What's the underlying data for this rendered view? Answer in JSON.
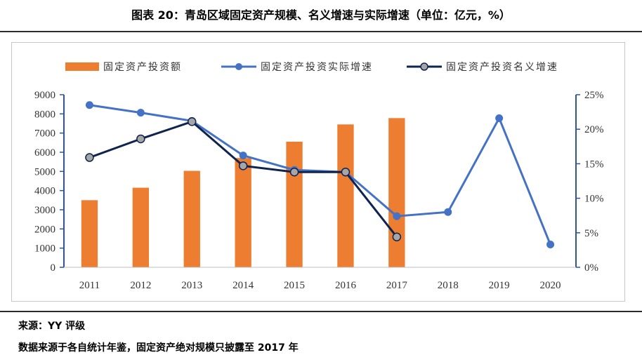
{
  "header": {
    "title": "图表 20：青岛区域固定资产规模、名义增速与实际增速（单位：亿元，%）"
  },
  "footer": {
    "source": "来源：YY 评级",
    "note": "数据来源于各自统计年鉴，固定资产绝对规模只披露至 2017 年"
  },
  "colors": {
    "bar": "#ED7D31",
    "real_line": "#4472C4",
    "nominal_line": "#0F2351",
    "nominal_marker": "#A6A6A6",
    "axis": "#2F5597"
  },
  "chart_data": {
    "type": "bar",
    "categories": [
      "2011",
      "2012",
      "2013",
      "2014",
      "2015",
      "2016",
      "2017",
      "2018",
      "2019",
      "2020"
    ],
    "left_axis": {
      "ylim": [
        0,
        9000
      ],
      "ticks": [
        "0",
        "1000",
        "2000",
        "3000",
        "4000",
        "5000",
        "6000",
        "7000",
        "8000",
        "9000"
      ]
    },
    "right_axis": {
      "ylim": [
        0,
        25
      ],
      "ticks": [
        "0%",
        "5%",
        "10%",
        "15%",
        "20%",
        "25%"
      ]
    },
    "grid": false,
    "legend_position": "top",
    "series": [
      {
        "name": "固定资产投资额",
        "type": "bar",
        "axis": "left",
        "values": [
          3500,
          4150,
          5030,
          5700,
          6550,
          7450,
          7780,
          null,
          null,
          null
        ]
      },
      {
        "name": "固定资产投资实际增速",
        "type": "line",
        "axis": "right",
        "values": [
          23.5,
          22.4,
          21.2,
          16.2,
          14.1,
          13.8,
          7.4,
          8.0,
          21.6,
          3.3
        ]
      },
      {
        "name": "固定资产投资名义增速",
        "type": "line",
        "axis": "right",
        "values": [
          15.9,
          18.6,
          21.1,
          14.7,
          13.8,
          13.8,
          4.4,
          null,
          null,
          null
        ]
      }
    ]
  }
}
